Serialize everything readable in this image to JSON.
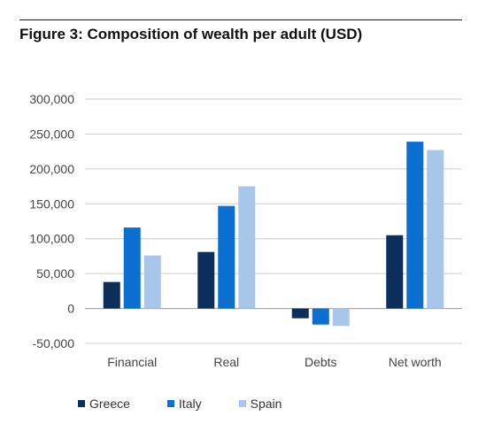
{
  "title": "Figure 3: Composition of wealth per adult (USD)",
  "colors": {
    "Greece": "#0b2f5a",
    "Italy": "#0a6fd1",
    "Spain": "#a7c6ea",
    "grid": "#cccccc",
    "axis": "#999999"
  },
  "chart_data": {
    "type": "bar",
    "title": "Figure 3: Composition of wealth per adult (USD)",
    "categories": [
      "Financial",
      "Real",
      "Debts",
      "Net worth"
    ],
    "series": [
      {
        "name": "Greece",
        "values": [
          38000,
          81000,
          -14000,
          105000
        ]
      },
      {
        "name": "Italy",
        "values": [
          116000,
          147000,
          -23000,
          239000
        ]
      },
      {
        "name": "Spain",
        "values": [
          76000,
          175000,
          -25000,
          227000
        ]
      }
    ],
    "ylim": [
      -50000,
      300000
    ],
    "yticks": [
      300000,
      250000,
      200000,
      150000,
      100000,
      50000,
      0,
      -50000
    ],
    "ytick_labels": [
      "300,000",
      "250,000",
      "200,000",
      "150,000",
      "100,000",
      "50,000",
      "0",
      "-50,000"
    ],
    "grid": true,
    "legend_position": "bottom-left"
  }
}
